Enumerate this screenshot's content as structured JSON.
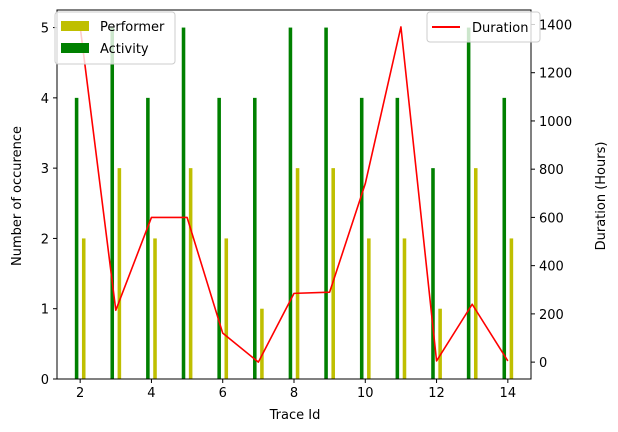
{
  "chart_data": {
    "type": "bar",
    "xlabel": "Trace Id",
    "ylabel_left": "Number of occurence",
    "ylabel_right": "Duration (Hours)",
    "x_ticks": [
      2,
      4,
      6,
      8,
      10,
      12,
      14
    ],
    "y_left_ticks": [
      0,
      1,
      2,
      3,
      4,
      5
    ],
    "y_right_ticks": [
      0,
      200,
      400,
      600,
      800,
      1000,
      1200,
      1400
    ],
    "xlim": [
      1.35,
      14.65
    ],
    "ylim_left": [
      0,
      5.25
    ],
    "ylim_right": [
      -70,
      1460
    ],
    "x": [
      2,
      3,
      4,
      5,
      6,
      7,
      8,
      9,
      10,
      11,
      12,
      13,
      14
    ],
    "series": [
      {
        "name": "Performer",
        "kind": "bar",
        "axis": "left",
        "color": "#bfbf00",
        "offset": 0.1,
        "values": [
          2,
          3,
          2,
          3,
          2,
          1,
          3,
          3,
          2,
          2,
          1,
          3,
          2
        ]
      },
      {
        "name": "Activity",
        "kind": "bar",
        "axis": "left",
        "color": "#008000",
        "offset": -0.1,
        "values": [
          4,
          5,
          4,
          5,
          4,
          4,
          5,
          5,
          4,
          4,
          3,
          5,
          4
        ]
      },
      {
        "name": "Duration",
        "kind": "line",
        "axis": "right",
        "color": "#ff0000",
        "values": [
          1390,
          215,
          600,
          600,
          120,
          0,
          285,
          290,
          740,
          1390,
          5,
          240,
          5
        ]
      }
    ],
    "legend_left": {
      "position": "upper-left",
      "entries": [
        "Performer",
        "Activity"
      ]
    },
    "legend_right": {
      "position": "upper-right",
      "entries": [
        "Duration"
      ]
    },
    "grid": false
  }
}
